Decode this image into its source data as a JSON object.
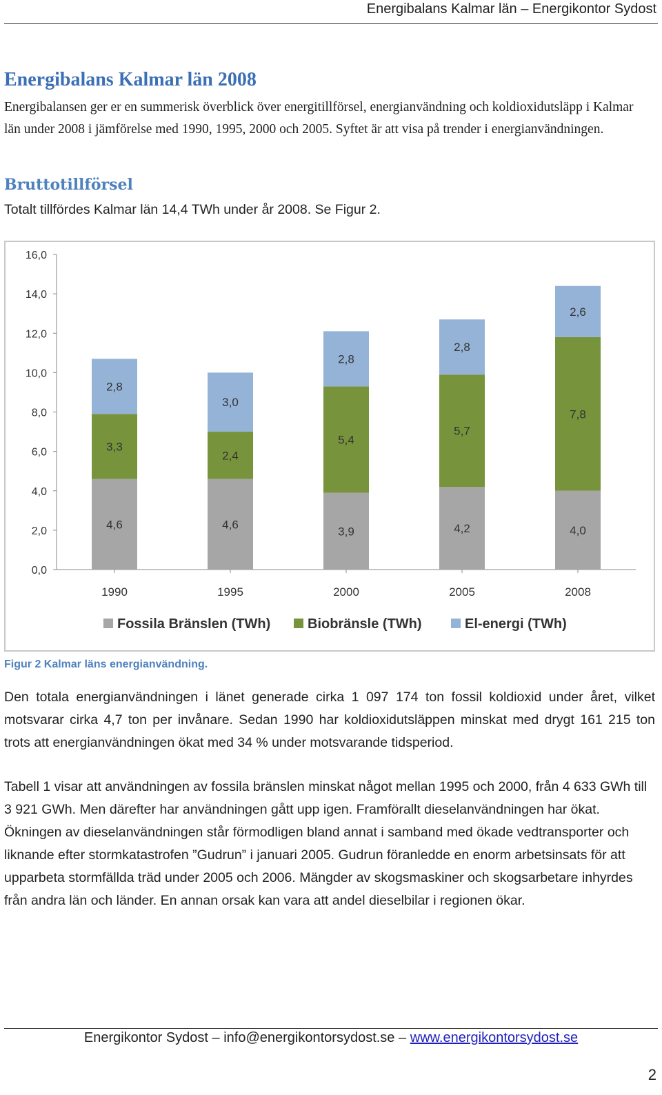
{
  "header": {
    "running_title": "Energibalans Kalmar län – Energikontor Sydost"
  },
  "title": "Energibalans Kalmar län 2008",
  "intro": "Energibalansen ger er en summerisk överblick över energitillförsel, energianvändning och koldioxidutsläpp i Kalmar län under 2008 i jämförelse med 1990, 1995, 2000 och 2005. Syftet är att visa på trender i energianvändningen.",
  "section": {
    "heading": "Bruttotillförsel",
    "lead": "Totalt tillfördes Kalmar län 14,4 TWh under år 2008. Se Figur 2."
  },
  "chart_data": {
    "type": "bar",
    "stacked": true,
    "categories": [
      "1990",
      "1995",
      "2000",
      "2005",
      "2008"
    ],
    "series": [
      {
        "name": "Fossila Bränslen (TWh)",
        "values": [
          4.6,
          4.6,
          3.9,
          4.2,
          4.0
        ],
        "labels": [
          "4,6",
          "4,6",
          "3,9",
          "4,2",
          "4,0"
        ],
        "color": "#a6a6a6"
      },
      {
        "name": "Biobränsle (TWh)",
        "values": [
          3.3,
          2.4,
          5.4,
          5.7,
          7.8
        ],
        "labels": [
          "3,3",
          "2,4",
          "5,4",
          "5,7",
          "7,8"
        ],
        "color": "#77933c"
      },
      {
        "name": "El-energi (TWh)",
        "values": [
          2.8,
          3.0,
          2.8,
          2.8,
          2.6
        ],
        "labels": [
          "2,8",
          "3,0",
          "2,8",
          "2,8",
          "2,6"
        ],
        "color": "#95b3d7"
      }
    ],
    "ylim": [
      0,
      16
    ],
    "yticks": [
      "0,0",
      "2,0",
      "4,0",
      "6,0",
      "8,0",
      "10,0",
      "12,0",
      "14,0",
      "16,0"
    ],
    "grid": false,
    "legend_position": "bottom"
  },
  "caption": "Figur 2 Kalmar läns energianvändning.",
  "paragraphs": {
    "p1": "Den totala energianvändningen i länet generade cirka 1 097 174 ton fossil koldioxid under året, vilket motsvarar cirka 4,7 ton per invånare. Sedan 1990 har koldioxidutsläppen minskat med drygt 161 215 ton trots att energianvändningen ökat med 34 % under motsvarande tidsperiod.",
    "p2": "Tabell 1 visar att användningen av fossila bränslen minskat något mellan 1995 och 2000, från 4 633 GWh till 3 921 GWh. Men därefter har användningen gått upp igen. Framförallt dieselanvändningen har ökat. Ökningen av dieselanvändningen står förmodligen bland annat i samband med ökade vedtransporter och liknande efter stormkatastrofen ”Gudrun” i januari 2005. Gudrun föranledde en enorm arbetsinsats för att upparbeta stormfällda träd under 2005 och 2006. Mängder av skogsmaskiner och skogsarbetare inhyrdes från andra län och länder. En annan orsak kan vara att andel dieselbilar i regionen ökar."
  },
  "footer": {
    "org": "Energikontor Sydost",
    "dash1": " – ",
    "email": "info@energikontorsydost.se",
    "dash2": " – ",
    "website": "www.energikontorsydost.se"
  },
  "page_number": "2"
}
